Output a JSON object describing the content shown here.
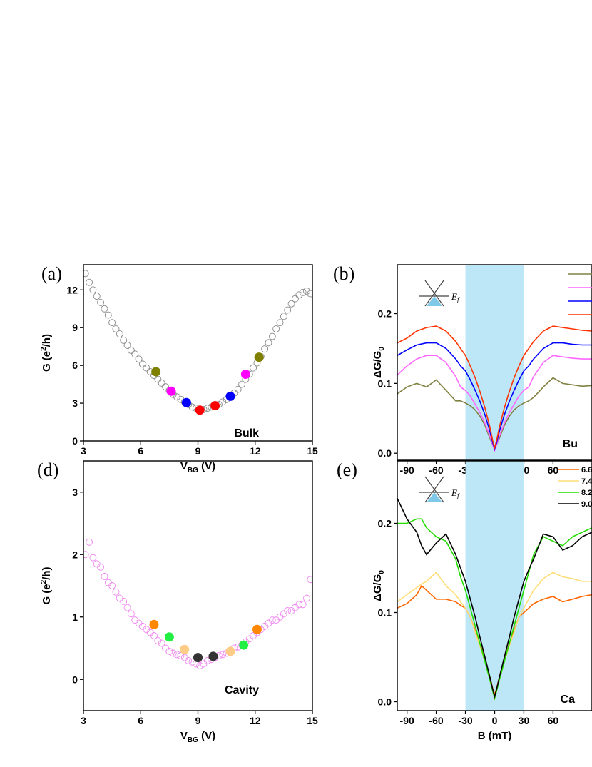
{
  "chart_data": [
    {
      "panel_label": "(a)",
      "type": "scatter",
      "annotation": "Bulk",
      "xlabel": {
        "main": "V",
        "sub": "BG",
        "rest": " (V)"
      },
      "ylabel": {
        "pre": "G (e",
        "sup": "2",
        "post": "/h)"
      },
      "xlim": [
        3,
        15
      ],
      "ylim": [
        0,
        14
      ],
      "xticks": [
        "3",
        "6",
        "9",
        "12",
        "15"
      ],
      "yticks": [
        "0",
        "3",
        "6",
        "9",
        "12"
      ],
      "series": [
        {
          "marker": "open-circle",
          "color": "#888888",
          "x": [
            3.1,
            3.3,
            3.5,
            3.7,
            3.9,
            4.1,
            4.3,
            4.5,
            4.7,
            4.9,
            5.1,
            5.3,
            5.5,
            5.7,
            5.9,
            6.1,
            6.3,
            6.5,
            6.7,
            6.9,
            7.1,
            7.3,
            7.5,
            7.7,
            7.9,
            8.1,
            8.3,
            8.5,
            8.7,
            8.9,
            9.1,
            9.3,
            9.5,
            9.7,
            9.9,
            10.1,
            10.3,
            10.5,
            10.7,
            10.9,
            11.1,
            11.3,
            11.5,
            11.7,
            11.9,
            12.1,
            12.3,
            12.5,
            12.7,
            12.9,
            13.1,
            13.3,
            13.5,
            13.7,
            13.9,
            14.1,
            14.3,
            14.5,
            14.7,
            14.9
          ],
          "y": [
            13.3,
            12.6,
            12.0,
            11.5,
            11.0,
            10.5,
            10.0,
            9.4,
            8.9,
            8.5,
            8.0,
            7.6,
            7.2,
            6.9,
            6.5,
            6.1,
            5.8,
            5.5,
            5.2,
            4.9,
            4.6,
            4.3,
            4.0,
            3.7,
            3.5,
            3.3,
            3.1,
            2.9,
            2.7,
            2.6,
            2.5,
            2.5,
            2.6,
            2.7,
            2.8,
            2.9,
            3.1,
            3.3,
            3.5,
            3.8,
            4.1,
            4.5,
            4.9,
            5.3,
            5.8,
            6.2,
            6.7,
            7.3,
            7.8,
            8.3,
            8.9,
            9.4,
            9.9,
            10.4,
            10.9,
            11.3,
            11.6,
            11.8,
            11.9,
            11.7
          ]
        },
        {
          "marker": "filled-circle",
          "x": [
            6.8,
            7.6,
            8.4,
            9.1,
            9.9,
            10.7,
            11.5,
            12.2
          ],
          "y": [
            5.5,
            3.95,
            3.05,
            2.45,
            2.8,
            3.55,
            5.3,
            6.65
          ],
          "colors": [
            "#808000",
            "#ff00ff",
            "#0000ff",
            "#ff0000",
            "#ff0000",
            "#0000ff",
            "#ff00ff",
            "#808000"
          ]
        }
      ]
    },
    {
      "panel_label": "(b)",
      "type": "line",
      "annotation": "Bu",
      "inset_label": "E",
      "inset_sub": "f",
      "xlabel": {
        "main": "B (mT)"
      },
      "ylabel": {
        "pre": "ΔG/G",
        "sub": "0"
      },
      "xlim": [
        -100,
        100
      ],
      "ylim": [
        -0.01,
        0.27
      ],
      "xticks": [
        "-90",
        "-60",
        "-30",
        "0",
        "30",
        "60"
      ],
      "xtick_values": [
        -90,
        -60,
        -30,
        0,
        30,
        60
      ],
      "yticks": [
        "0.0",
        "0.1",
        "0.2"
      ],
      "ytick_values": [
        0.0,
        0.1,
        0.2
      ],
      "shaded_region": [
        -30,
        30
      ],
      "legend_colors": [
        "#808040",
        "#ff66ff",
        "#0000ff",
        "#ff3300"
      ],
      "series": [
        {
          "color": "#808040",
          "x": [
            -100,
            -90,
            -80,
            -70,
            -60,
            -50,
            -40,
            -35,
            -30,
            -25,
            -20,
            -15,
            -10,
            -5,
            -2,
            0,
            2,
            5,
            10,
            15,
            20,
            25,
            30,
            35,
            40,
            50,
            60,
            70,
            80,
            90,
            100
          ],
          "y": [
            0.085,
            0.095,
            0.1,
            0.095,
            0.105,
            0.09,
            0.075,
            0.075,
            0.072,
            0.068,
            0.062,
            0.053,
            0.04,
            0.022,
            0.012,
            0.008,
            0.012,
            0.022,
            0.04,
            0.053,
            0.062,
            0.068,
            0.072,
            0.075,
            0.08,
            0.095,
            0.108,
            0.1,
            0.098,
            0.096,
            0.097
          ]
        },
        {
          "color": "#ff66ff",
          "x": [
            -100,
            -90,
            -80,
            -70,
            -60,
            -50,
            -40,
            -35,
            -30,
            -25,
            -20,
            -15,
            -10,
            -5,
            -2,
            0,
            2,
            5,
            10,
            15,
            20,
            25,
            30,
            35,
            40,
            50,
            60,
            70,
            80,
            90,
            100
          ],
          "y": [
            0.112,
            0.125,
            0.135,
            0.14,
            0.14,
            0.13,
            0.11,
            0.095,
            0.09,
            0.082,
            0.07,
            0.058,
            0.043,
            0.025,
            0.012,
            0.004,
            0.012,
            0.025,
            0.043,
            0.058,
            0.07,
            0.082,
            0.09,
            0.095,
            0.11,
            0.13,
            0.14,
            0.138,
            0.136,
            0.135,
            0.135
          ]
        },
        {
          "color": "#0000ff",
          "x": [
            -100,
            -90,
            -80,
            -70,
            -60,
            -50,
            -40,
            -35,
            -30,
            -25,
            -20,
            -15,
            -10,
            -5,
            -2,
            0,
            2,
            5,
            10,
            15,
            20,
            25,
            30,
            35,
            40,
            50,
            60,
            70,
            80,
            90,
            100
          ],
          "y": [
            0.14,
            0.148,
            0.155,
            0.158,
            0.158,
            0.15,
            0.135,
            0.125,
            0.118,
            0.105,
            0.09,
            0.074,
            0.055,
            0.032,
            0.015,
            0.006,
            0.015,
            0.032,
            0.055,
            0.074,
            0.09,
            0.105,
            0.118,
            0.125,
            0.135,
            0.15,
            0.158,
            0.158,
            0.156,
            0.155,
            0.155
          ]
        },
        {
          "color": "#ff3300",
          "x": [
            -100,
            -90,
            -80,
            -70,
            -60,
            -50,
            -40,
            -35,
            -30,
            -25,
            -20,
            -15,
            -10,
            -5,
            -2,
            0,
            2,
            5,
            10,
            15,
            20,
            25,
            30,
            35,
            40,
            50,
            60,
            70,
            80,
            90,
            100
          ],
          "y": [
            0.158,
            0.165,
            0.175,
            0.18,
            0.182,
            0.175,
            0.16,
            0.15,
            0.14,
            0.125,
            0.108,
            0.088,
            0.065,
            0.038,
            0.018,
            0.008,
            0.018,
            0.038,
            0.065,
            0.088,
            0.108,
            0.125,
            0.14,
            0.15,
            0.16,
            0.175,
            0.182,
            0.18,
            0.178,
            0.176,
            0.175
          ]
        }
      ]
    },
    {
      "panel_label": "(d)",
      "type": "scatter",
      "annotation": "Cavity",
      "xlabel": {
        "main": "V",
        "sub": "BG",
        "rest": " (V)"
      },
      "ylabel": {
        "pre": "G (e",
        "sup": "2",
        "post": "/h)"
      },
      "xlim": [
        3,
        15
      ],
      "ylim": [
        -0.5,
        3.5
      ],
      "xticks": [
        "3",
        "6",
        "9",
        "12",
        "15"
      ],
      "yticks": [
        "0",
        "1",
        "2",
        "3"
      ],
      "series": [
        {
          "marker": "open-circle",
          "color": "#ee88ee",
          "x": [
            3.1,
            3.3,
            3.5,
            3.7,
            3.9,
            4.1,
            4.3,
            4.5,
            4.7,
            4.9,
            5.1,
            5.3,
            5.5,
            5.7,
            5.9,
            6.1,
            6.3,
            6.5,
            6.7,
            6.9,
            7.1,
            7.3,
            7.5,
            7.7,
            7.9,
            8.1,
            8.3,
            8.5,
            8.7,
            8.9,
            9.1,
            9.3,
            9.5,
            9.7,
            9.9,
            10.1,
            10.3,
            10.5,
            10.7,
            10.9,
            11.1,
            11.3,
            11.5,
            11.7,
            11.9,
            12.1,
            12.3,
            12.5,
            12.7,
            12.9,
            13.1,
            13.3,
            13.5,
            13.7,
            13.9,
            14.1,
            14.3,
            14.5,
            14.7,
            14.9
          ],
          "y": [
            2.0,
            2.2,
            1.95,
            1.85,
            1.8,
            1.65,
            1.55,
            1.5,
            1.4,
            1.3,
            1.25,
            1.15,
            1.05,
            0.95,
            0.9,
            0.85,
            0.8,
            0.75,
            0.7,
            0.62,
            0.58,
            0.5,
            0.45,
            0.42,
            0.4,
            0.38,
            0.35,
            0.3,
            0.28,
            0.25,
            0.22,
            0.25,
            0.3,
            0.32,
            0.35,
            0.38,
            0.4,
            0.42,
            0.45,
            0.5,
            0.52,
            0.55,
            0.6,
            0.65,
            0.7,
            0.75,
            0.8,
            0.85,
            0.9,
            0.95,
            0.95,
            1.0,
            1.05,
            1.1,
            1.1,
            1.15,
            1.2,
            1.2,
            1.3,
            1.6
          ]
        },
        {
          "marker": "filled-circle",
          "x": [
            6.7,
            7.5,
            8.3,
            9.0,
            9.8,
            10.7,
            11.4,
            12.1
          ],
          "y": [
            0.88,
            0.68,
            0.48,
            0.35,
            0.37,
            0.45,
            0.55,
            0.8
          ],
          "colors": [
            "#ff8800",
            "#22ee44",
            "#ffcc88",
            "#333333",
            "#333333",
            "#ffcc88",
            "#22ee44",
            "#ff8800"
          ]
        }
      ]
    },
    {
      "panel_label": "(e)",
      "type": "line",
      "annotation": "Ca",
      "inset_label": "E",
      "inset_sub": "f",
      "xlabel": {
        "main": "B (mT)"
      },
      "ylabel": {
        "pre": "ΔG/G",
        "sub": "0"
      },
      "xlim": [
        -100,
        100
      ],
      "ylim": [
        -0.01,
        0.27
      ],
      "xticks": [
        "-90",
        "-60",
        "-30",
        "0",
        "30",
        "60"
      ],
      "xtick_values": [
        -90,
        -60,
        -30,
        0,
        30,
        60
      ],
      "yticks": [
        "0.0",
        "0.1",
        "0.2"
      ],
      "ytick_values": [
        0.0,
        0.1,
        0.2
      ],
      "shaded_region": [
        -30,
        30
      ],
      "legend": [
        {
          "label": "6.6",
          "color": "#ff6600"
        },
        {
          "label": "7.4",
          "color": "#ffdd77"
        },
        {
          "label": "8.2",
          "color": "#22dd00"
        },
        {
          "label": "9.0",
          "color": "#000000"
        }
      ],
      "series": [
        {
          "color": "#ff6600",
          "x": [
            -100,
            -90,
            -80,
            -75,
            -70,
            -60,
            -50,
            -40,
            -35,
            -30,
            -25,
            -20,
            -15,
            -10,
            -5,
            -2,
            0,
            2,
            5,
            10,
            15,
            20,
            25,
            30,
            35,
            40,
            50,
            60,
            70,
            80,
            90,
            100
          ],
          "y": [
            0.105,
            0.11,
            0.12,
            0.13,
            0.125,
            0.115,
            0.115,
            0.112,
            0.108,
            0.105,
            0.095,
            0.08,
            0.065,
            0.048,
            0.028,
            0.015,
            0.008,
            0.015,
            0.028,
            0.048,
            0.065,
            0.08,
            0.095,
            0.1,
            0.105,
            0.11,
            0.115,
            0.118,
            0.112,
            0.115,
            0.118,
            0.12
          ]
        },
        {
          "color": "#ffdd77",
          "x": [
            -100,
            -90,
            -80,
            -75,
            -70,
            -60,
            -50,
            -40,
            -35,
            -30,
            -25,
            -20,
            -15,
            -10,
            -5,
            -2,
            0,
            2,
            5,
            10,
            15,
            20,
            25,
            30,
            35,
            40,
            50,
            60,
            70,
            80,
            90,
            100
          ],
          "y": [
            0.112,
            0.12,
            0.128,
            0.132,
            0.135,
            0.145,
            0.13,
            0.12,
            0.112,
            0.105,
            0.095,
            0.078,
            0.062,
            0.045,
            0.025,
            0.012,
            0.004,
            0.012,
            0.025,
            0.045,
            0.062,
            0.078,
            0.095,
            0.105,
            0.115,
            0.125,
            0.138,
            0.145,
            0.14,
            0.138,
            0.135,
            0.135
          ]
        },
        {
          "color": "#22dd00",
          "x": [
            -100,
            -90,
            -80,
            -75,
            -70,
            -60,
            -50,
            -40,
            -35,
            -30,
            -25,
            -20,
            -15,
            -10,
            -5,
            -2,
            0,
            2,
            5,
            10,
            15,
            20,
            25,
            30,
            35,
            40,
            50,
            60,
            70,
            80,
            90,
            100
          ],
          "y": [
            0.2,
            0.2,
            0.205,
            0.205,
            0.195,
            0.185,
            0.18,
            0.16,
            0.14,
            0.125,
            0.105,
            0.085,
            0.065,
            0.045,
            0.025,
            0.012,
            0.004,
            0.012,
            0.025,
            0.045,
            0.065,
            0.085,
            0.105,
            0.125,
            0.145,
            0.165,
            0.185,
            0.18,
            0.175,
            0.185,
            0.19,
            0.195
          ]
        },
        {
          "color": "#000000",
          "x": [
            -100,
            -90,
            -80,
            -75,
            -70,
            -60,
            -50,
            -40,
            -35,
            -30,
            -25,
            -20,
            -15,
            -10,
            -5,
            -2,
            0,
            2,
            5,
            10,
            15,
            20,
            25,
            30,
            35,
            40,
            50,
            60,
            70,
            80,
            90,
            100
          ],
          "y": [
            0.228,
            0.205,
            0.19,
            0.175,
            0.165,
            0.178,
            0.188,
            0.165,
            0.15,
            0.135,
            0.115,
            0.095,
            0.072,
            0.05,
            0.028,
            0.014,
            0.006,
            0.014,
            0.028,
            0.05,
            0.072,
            0.095,
            0.115,
            0.135,
            0.148,
            0.16,
            0.188,
            0.185,
            0.17,
            0.175,
            0.185,
            0.19
          ]
        }
      ]
    }
  ]
}
